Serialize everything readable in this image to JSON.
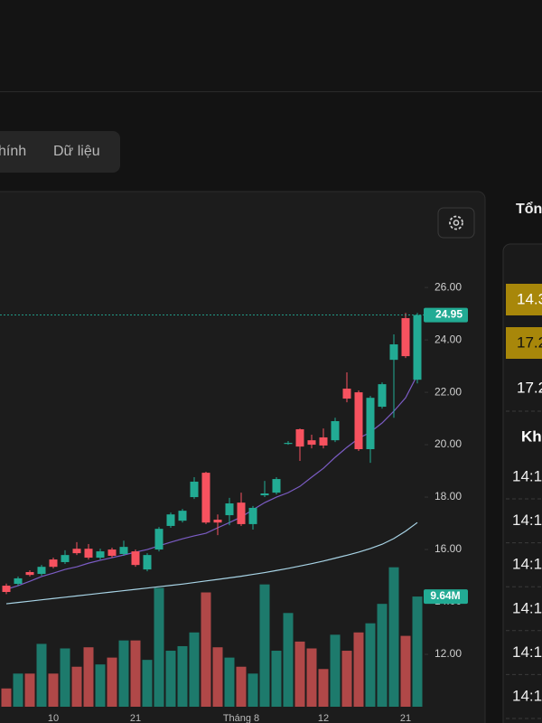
{
  "tabs": [
    "hính",
    "Dữ liệu"
  ],
  "side_panel": {
    "heading": "Tổn",
    "rows": [
      "14.3",
      "17.2",
      "17.2"
    ],
    "section": "Kh",
    "times": [
      "14:1",
      "14:1",
      "14:1",
      "14:1",
      "14:1",
      "14:1"
    ]
  },
  "chart_data": {
    "type": "candlestick",
    "categories": [
      null,
      null,
      null,
      null,
      "10",
      null,
      null,
      null,
      null,
      null,
      null,
      "21",
      null,
      null,
      null,
      null,
      null,
      null,
      null,
      null,
      "Tháng 8",
      null,
      null,
      null,
      null,
      null,
      null,
      "12",
      null,
      null,
      null,
      null,
      null,
      null,
      "21",
      null
    ],
    "open": [
      14.62,
      14.69,
      15.14,
      15.07,
      15.62,
      15.52,
      16.03,
      16.03,
      15.69,
      16.0,
      15.83,
      15.93,
      15.24,
      16.0,
      16.9,
      17.1,
      18.0,
      18.93,
      17.14,
      17.31,
      17.79,
      16.97,
      18.07,
      18.17,
      20.03,
      20.59,
      20.17,
      20.28,
      20.17,
      22.14,
      22.0,
      19.83,
      21.45,
      23.24,
      24.83,
      22.48
    ],
    "high": [
      14.7,
      14.97,
      15.21,
      15.41,
      15.69,
      15.97,
      16.28,
      16.21,
      16.03,
      16.07,
      16.34,
      16.0,
      15.86,
      16.86,
      17.41,
      17.55,
      18.76,
      18.97,
      17.34,
      17.97,
      18.17,
      17.66,
      18.62,
      18.76,
      20.14,
      20.62,
      20.38,
      20.62,
      21.03,
      22.76,
      22.07,
      21.86,
      22.38,
      24.21,
      25.03,
      25.03
    ],
    "low": [
      14.3,
      14.62,
      14.97,
      15.0,
      15.28,
      15.45,
      15.79,
      15.62,
      15.62,
      15.69,
      15.76,
      15.34,
      15.17,
      15.93,
      16.83,
      17.03,
      17.93,
      16.97,
      16.55,
      16.93,
      16.9,
      16.76,
      18.0,
      18.1,
      20.0,
      19.38,
      19.86,
      19.86,
      20.1,
      21.62,
      19.76,
      19.31,
      21.38,
      21.03,
      23.31,
      22.34
    ],
    "close": [
      14.38,
      14.9,
      15.03,
      15.34,
      15.34,
      15.79,
      15.86,
      15.69,
      15.93,
      15.76,
      16.1,
      15.41,
      15.79,
      16.79,
      17.34,
      17.48,
      18.59,
      17.03,
      17.03,
      17.76,
      16.97,
      17.59,
      18.14,
      18.69,
      20.07,
      19.93,
      20.0,
      19.97,
      20.9,
      21.76,
      19.83,
      21.79,
      22.31,
      23.83,
      23.38,
      24.95
    ],
    "volume": [
      1.6,
      2.9,
      2.9,
      5.5,
      2.9,
      5.1,
      3.5,
      5.2,
      3.7,
      4.3,
      5.8,
      5.8,
      4.1,
      10.4,
      4.9,
      5.3,
      6.5,
      10.0,
      5.2,
      4.3,
      3.5,
      2.9,
      10.7,
      4.9,
      8.2,
      5.7,
      5.1,
      3.3,
      6.3,
      4.9,
      6.5,
      7.3,
      9.0,
      12.2,
      6.2,
      9.64
    ],
    "ma_lines": [
      {
        "color": "#7b5cc4",
        "values": [
          14.48,
          14.62,
          14.79,
          14.97,
          15.1,
          15.24,
          15.34,
          15.48,
          15.59,
          15.69,
          15.79,
          15.9,
          16.0,
          16.14,
          16.28,
          16.41,
          16.52,
          16.62,
          16.83,
          17.03,
          17.24,
          17.52,
          17.79,
          18.0,
          18.17,
          18.41,
          18.76,
          19.1,
          19.52,
          19.9,
          20.24,
          20.48,
          20.83,
          21.28,
          21.79,
          22.66
        ]
      },
      {
        "color": "#a8d4e6",
        "values": [
          13.93,
          13.98,
          14.03,
          14.08,
          14.13,
          14.18,
          14.23,
          14.28,
          14.33,
          14.38,
          14.43,
          14.48,
          14.53,
          14.58,
          14.63,
          14.68,
          14.74,
          14.8,
          14.86,
          14.92,
          14.98,
          15.05,
          15.12,
          15.2,
          15.28,
          15.37,
          15.46,
          15.56,
          15.67,
          15.78,
          15.9,
          16.04,
          16.2,
          16.42,
          16.7,
          17.03
        ]
      }
    ],
    "up_color": "#22ab94",
    "down_color": "#f7525f",
    "volume_up_color": "#1d7a6c",
    "volume_down_color": "#b04848",
    "last_price": 24.95,
    "last_volume": {
      "value": 9.64,
      "label": "9.64M"
    },
    "ylim": [
      10,
      26.97
    ],
    "volume_lim": [
      0,
      38.9
    ],
    "yticks": [
      {
        "value": 12,
        "label": "12.00"
      },
      {
        "value": 14,
        "label": "14.00"
      },
      {
        "value": 16,
        "label": "16.00"
      },
      {
        "value": 18,
        "label": "18.00"
      },
      {
        "value": 20,
        "label": "20.00"
      },
      {
        "value": 22,
        "label": "22.00"
      },
      {
        "value": 24,
        "label": "24.00"
      },
      {
        "value": 26,
        "label": "26.00"
      }
    ]
  }
}
